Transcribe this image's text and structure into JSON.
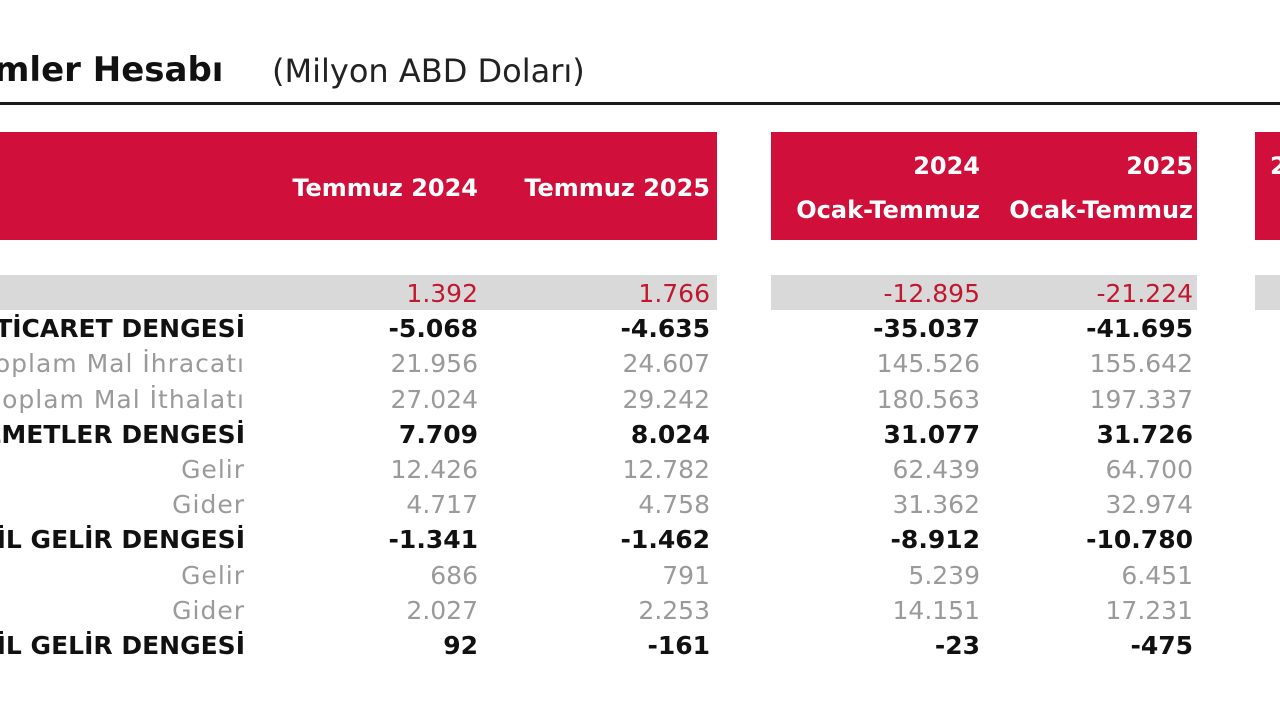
{
  "title": {
    "main": "mler Hesabı",
    "sub": "(Milyon ABD Doları)"
  },
  "headers": {
    "col1": "Temmuz 2024",
    "col2": "Temmuz 2025",
    "col3_line1": "2024",
    "col3_line2": "Ocak-Temmuz",
    "col4_line1": "2025",
    "col4_line2": "Ocak-Temmuz",
    "col5_partial": "2"
  },
  "colors": {
    "header_bg": "#d0103a",
    "band_bg": "#d9d9d9",
    "negative_red": "#c0182e"
  },
  "rows": [
    {
      "label": "",
      "v1": "1.392",
      "v2": "1.766",
      "v3": "-12.895",
      "v4": "-21.224",
      "style": "red"
    },
    {
      "label": "Tİ TİCARET DENGESİ",
      "v1": "-5.068",
      "v2": "-4.635",
      "v3": "-35.037",
      "v4": "-41.695",
      "style": "bold"
    },
    {
      "label": "oplam Mal İhracatı",
      "v1": "21.956",
      "v2": "24.607",
      "v3": "145.526",
      "v4": "155.642",
      "style": "grey"
    },
    {
      "label": "oplam Mal İthalatı",
      "v1": "27.024",
      "v2": "29.242",
      "v3": "180.563",
      "v4": "197.337",
      "style": "grey"
    },
    {
      "label": "ZMETLER DENGESİ",
      "v1": "7.709",
      "v2": "8.024",
      "v3": "31.077",
      "v4": "31.726",
      "style": "bold"
    },
    {
      "label": "Gelir",
      "v1": "12.426",
      "v2": "12.782",
      "v3": "62.439",
      "v4": "64.700",
      "style": "grey"
    },
    {
      "label": "Gider",
      "v1": "4.717",
      "v2": "4.758",
      "v3": "31.362",
      "v4": "32.974",
      "style": "grey"
    },
    {
      "label": "CİL GELİR DENGESİ",
      "v1": "-1.341",
      "v2": "-1.462",
      "v3": "-8.912",
      "v4": "-10.780",
      "style": "bold"
    },
    {
      "label": "Gelir",
      "v1": "686",
      "v2": "791",
      "v3": "5.239",
      "v4": "6.451",
      "style": "grey"
    },
    {
      "label": "Gider",
      "v1": "2.027",
      "v2": "2.253",
      "v3": "14.151",
      "v4": "17.231",
      "style": "grey"
    },
    {
      "label": "CİL GELİR DENGESİ",
      "v1": "92",
      "v2": "-161",
      "v3": "-23",
      "v4": "-475",
      "style": "bold"
    }
  ]
}
